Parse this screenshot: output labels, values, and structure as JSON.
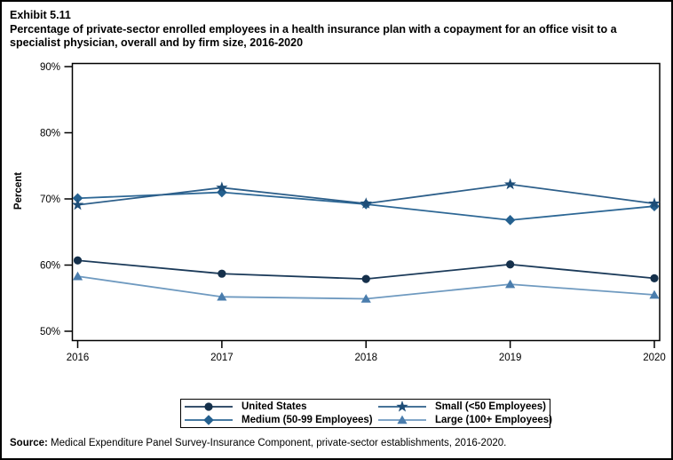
{
  "header": {
    "exhibit": "Exhibit 5.11",
    "title": "Percentage of private-sector enrolled employees in a health insurance plan with a copayment for an office visit to a specialist physician, overall and by firm size, 2016-2020"
  },
  "source": {
    "label": "Source:",
    "text": "Medical Expenditure Panel Survey-Insurance Component, private-sector establishments, 2016-2020."
  },
  "chart_data": {
    "type": "line",
    "x": [
      2016,
      2017,
      2018,
      2019,
      2020
    ],
    "series": [
      {
        "name": "United States",
        "marker": "circle",
        "marker_color": "#15304b",
        "line_color": "#1b3a59",
        "values": [
          60.7,
          58.7,
          57.9,
          60.1,
          58.0
        ]
      },
      {
        "name": "Medium (50-99 Employees)",
        "marker": "diamond",
        "marker_color": "#24608f",
        "line_color": "#2d6795",
        "values": [
          70.1,
          71.0,
          69.2,
          66.8,
          68.9
        ]
      },
      {
        "name": "Small (<50 Employees)",
        "marker": "star",
        "marker_color": "#1d4d77",
        "line_color": "#2d5f8a",
        "values": [
          69.1,
          71.7,
          69.3,
          72.2,
          69.3
        ]
      },
      {
        "name": "Large (100+ Employees)",
        "marker": "triangle",
        "marker_color": "#4a7dad",
        "line_color": "#6f9ac0",
        "values": [
          58.3,
          55.2,
          54.9,
          57.1,
          55.5
        ]
      }
    ],
    "ylabel": "Percent",
    "ylim": [
      50,
      90
    ],
    "ytick_values": [
      50,
      60,
      70,
      80,
      90
    ],
    "ytick_labels": [
      "50%",
      "60%",
      "70%",
      "80%",
      "90%"
    ],
    "xtick_labels": [
      "2016",
      "2017",
      "2018",
      "2019",
      "2020"
    ],
    "grid": false,
    "legend": {
      "position": "bottom",
      "items": [
        {
          "label": "United States",
          "series": 0
        },
        {
          "label": "Small (<50 Employees)",
          "series": 2
        },
        {
          "label": "Medium (50-99 Employees)",
          "series": 1
        },
        {
          "label": "Large (100+ Employees)",
          "series": 3
        }
      ]
    }
  }
}
